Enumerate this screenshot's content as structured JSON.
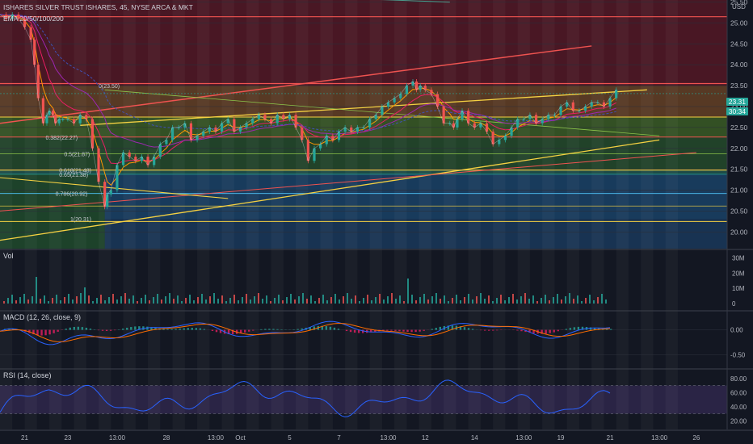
{
  "header": {
    "symbol_line": "ISHARES SILVER TRUST ISHARES, 45, NYSE ARCA & MKT",
    "indicator_line": "EMA 20/50/100/200"
  },
  "currency": "USD",
  "last_price": "23.31",
  "countdown": "30:34",
  "pane_labels": {
    "vol": "Vol",
    "macd": "MACD (12, 26, close, 9)",
    "rsi": "RSI (14, close)"
  },
  "fib_levels": [
    {
      "label": "0(23.50)",
      "value": 23.5
    },
    {
      "label": "0.382(22.27)",
      "value": 22.27
    },
    {
      "label": "0.5(21.87)",
      "value": 21.87
    },
    {
      "label": "0.618(21.48)",
      "value": 21.48
    },
    {
      "label": "0.65(21.38)",
      "value": 21.38
    },
    {
      "label": "0.786(20.92)",
      "value": 20.92
    },
    {
      "label": "1(20.31)",
      "value": 20.31
    }
  ],
  "chart_data": [
    {
      "type": "line",
      "title": "ISHARES SILVER TRUST ISHARES, 45, NYSE ARCA & MKT",
      "ylim": [
        19.6,
        25.55
      ],
      "y_ticks": [
        "25.50",
        "25.00",
        "24.50",
        "24.00",
        "23.50",
        "23.00",
        "22.50",
        "22.00",
        "21.50",
        "21.00",
        "20.50",
        "20.00"
      ],
      "x_ticks": [
        "21",
        "23",
        "13:00",
        "28",
        "13:00",
        "Oct",
        "5",
        "7",
        "13:00",
        "12",
        "14",
        "13:00",
        "19",
        "21",
        "13:00",
        "26"
      ],
      "x_tick_pos": [
        0.5,
        4,
        8,
        12,
        16,
        18,
        22,
        26,
        30,
        33,
        37,
        41,
        44,
        48,
        52,
        55
      ],
      "xlim": [
        -1.5,
        57.5
      ],
      "series": [
        {
          "name": "",
          "x": [
            -1.5,
            -1,
            -0.5,
            0,
            0.5,
            1,
            1.3,
            1.6,
            2,
            2.3,
            2.5,
            2.8,
            3,
            3.3,
            3.6,
            4,
            4.5,
            5,
            5.5,
            6,
            6.5,
            7,
            7.2,
            7.5,
            8,
            8.5,
            9,
            9.5,
            10,
            10.5,
            11,
            11.5,
            12,
            12.5,
            13,
            13.5,
            14,
            14.5,
            15,
            15.5,
            16,
            16.5,
            17,
            17.5,
            18,
            18.5,
            19,
            19.5,
            20,
            20.5,
            21,
            21.5,
            22,
            22.5,
            23,
            23.5,
            24,
            24.5,
            25,
            25.5,
            26,
            26.5,
            27,
            27.5,
            28,
            28.5,
            29,
            29.5,
            30,
            30.5,
            31,
            31.5,
            32,
            32.3,
            32.6,
            33,
            33.5,
            34,
            34.5,
            35,
            35.3,
            35.6,
            36,
            36.5,
            37,
            37.5,
            38,
            38.5,
            39,
            39.5,
            40,
            40.5,
            41,
            41.5,
            42,
            42.5,
            43,
            43.5,
            44,
            44.5,
            45,
            45.5,
            46,
            46.5,
            47,
            47.5,
            48,
            48.5
          ],
          "y": [
            25.2,
            25.1,
            25.2,
            25.1,
            24.9,
            24.6,
            24.0,
            23.2,
            22.6,
            22.8,
            22.9,
            22.8,
            22.6,
            22.7,
            22.7,
            22.7,
            22.6,
            22.8,
            22.7,
            22.0,
            21.2,
            20.6,
            20.9,
            21.0,
            21.6,
            21.9,
            21.8,
            21.7,
            21.8,
            21.6,
            21.8,
            22.1,
            22.2,
            22.5,
            22.5,
            22.6,
            22.2,
            22.3,
            22.4,
            22.5,
            22.4,
            22.6,
            22.7,
            22.4,
            22.5,
            22.6,
            22.7,
            22.8,
            22.7,
            22.6,
            22.8,
            22.7,
            22.8,
            22.5,
            22.2,
            21.7,
            22.0,
            22.1,
            22.3,
            22.2,
            22.4,
            22.5,
            22.4,
            22.5,
            22.5,
            22.7,
            22.8,
            23.0,
            23.1,
            23.2,
            23.3,
            23.5,
            23.6,
            23.4,
            23.5,
            23.4,
            23.3,
            23.0,
            22.6,
            22.6,
            22.5,
            22.7,
            22.9,
            22.6,
            22.5,
            22.6,
            22.4,
            22.1,
            22.2,
            22.3,
            22.5,
            22.7,
            22.7,
            22.8,
            22.6,
            22.7,
            22.8,
            22.8,
            23.0,
            23.1,
            22.9,
            22.9,
            23.0,
            23.1,
            23.1,
            23.0,
            23.2,
            23.4
          ]
        }
      ]
    },
    {
      "type": "bar",
      "ylim": [
        0,
        34000000
      ],
      "y_ticks": [
        "30M",
        "20M",
        "10M",
        "0"
      ]
    },
    {
      "type": "line",
      "ylim": [
        -0.7,
        0.3
      ],
      "y_ticks": [
        "0.00",
        "-0.50"
      ]
    },
    {
      "type": "line",
      "ylim": [
        10,
        90
      ],
      "y_ticks": [
        "80.00",
        "60.00",
        "40.00",
        "20.00"
      ]
    }
  ],
  "colors": {
    "bg": "#131722",
    "grid": "#2a2e39",
    "text": "#b2b5be",
    "up": "#26a69a",
    "down": "#ef5350",
    "macd": "#2962ff",
    "signal": "#ff6d00",
    "rsi": "#2962ff"
  }
}
